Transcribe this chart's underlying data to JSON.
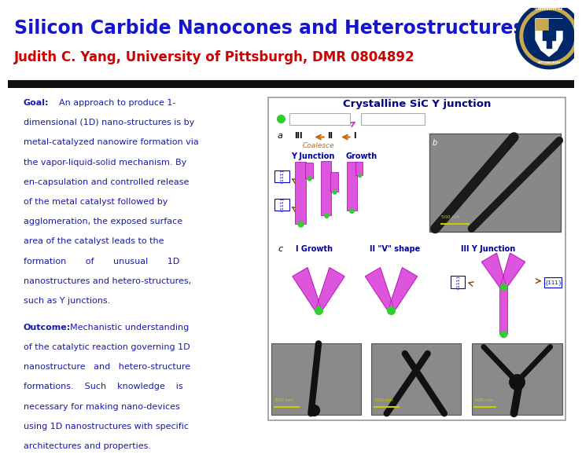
{
  "title_main": "Silicon Carbide Nanocones and Heterostructures",
  "title_sub": "Judith C. Yang, University of Pittsburgh, DMR 0804892",
  "title_main_color": "#1515cc",
  "title_sub_color": "#cc0000",
  "bg_color": "#ffffff",
  "divider_color": "#111111",
  "panel_title": "Crystalline SiC Y junction",
  "panel_title_color": "#000080",
  "goal_label": "Goal:",
  "goal_text": "An approach to produce 1-dimensional (1D) nano-structures is by metal-catalyzed nanowire formation via the vapor-liquid-solid mechanism. By en-capsulation and controlled release of the metal catalyst followed by agglomeration, the exposed surface area of the catalyst leads to the formation of unusual 1D nanostructures and hetero-structures, such as Y junctions.",
  "outcome_label": "Outcome:",
  "outcome_text": "Mechanistic understanding of the catalytic reaction governing 1D nanostructure and hetero-structure formations. Such knowledge is necessary for making nano-devices using 1D nanostructures with specific architectures and properties.",
  "text_color": "#1a1aaa",
  "body_fontsize": 8.0,
  "pink": "#dd55dd",
  "green": "#33cc33",
  "dark_pink": "#aa00aa"
}
